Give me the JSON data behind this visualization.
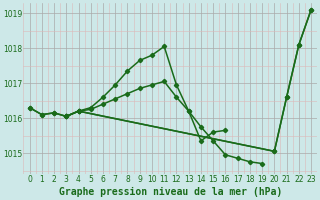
{
  "title": "Graphe pression niveau de la mer (hPa)",
  "bg_color": "#cde8e8",
  "line_color": "#1a6b1a",
  "xlim": [
    -0.5,
    23.5
  ],
  "ylim": [
    1014.4,
    1019.3
  ],
  "yticks": [
    1015,
    1016,
    1017,
    1018,
    1019
  ],
  "xticks": [
    0,
    1,
    2,
    3,
    4,
    5,
    6,
    7,
    8,
    9,
    10,
    11,
    12,
    13,
    14,
    15,
    16,
    17,
    18,
    19,
    20,
    21,
    22,
    23
  ],
  "series1": [
    1016.3,
    1016.1,
    1016.15,
    1016.05,
    1016.2,
    1016.3,
    1016.6,
    1016.95,
    1017.35,
    1017.65,
    1017.8,
    1018.05,
    1016.95,
    1016.2,
    1015.35,
    1015.6,
    1015.65,
    null,
    null,
    null,
    null,
    null,
    null,
    null
  ],
  "series2": [
    null,
    null,
    null,
    1016.05,
    1016.2,
    null,
    null,
    null,
    null,
    null,
    null,
    null,
    null,
    null,
    null,
    null,
    null,
    null,
    null,
    null,
    1015.05,
    1016.6,
    1018.1,
    1019.1
  ],
  "series3": [
    null,
    null,
    null,
    1016.05,
    1016.2,
    1016.25,
    1016.4,
    1016.55,
    1016.7,
    1016.85,
    1016.95,
    1017.05,
    1016.6,
    1016.2,
    1015.75,
    1015.35,
    1014.95,
    1014.85,
    1014.75,
    1014.7,
    null,
    null,
    null,
    null
  ],
  "series4": [
    1016.3,
    1016.1,
    1016.15,
    1016.05,
    1016.2,
    null,
    null,
    null,
    null,
    null,
    null,
    null,
    null,
    null,
    null,
    null,
    null,
    null,
    null,
    null,
    1015.05,
    1016.6,
    1018.1,
    1019.1
  ],
  "marker": "D",
  "markersize": 2.2,
  "linewidth": 1.1,
  "tick_fontsize": 5.5,
  "label_fontsize": 7.0
}
